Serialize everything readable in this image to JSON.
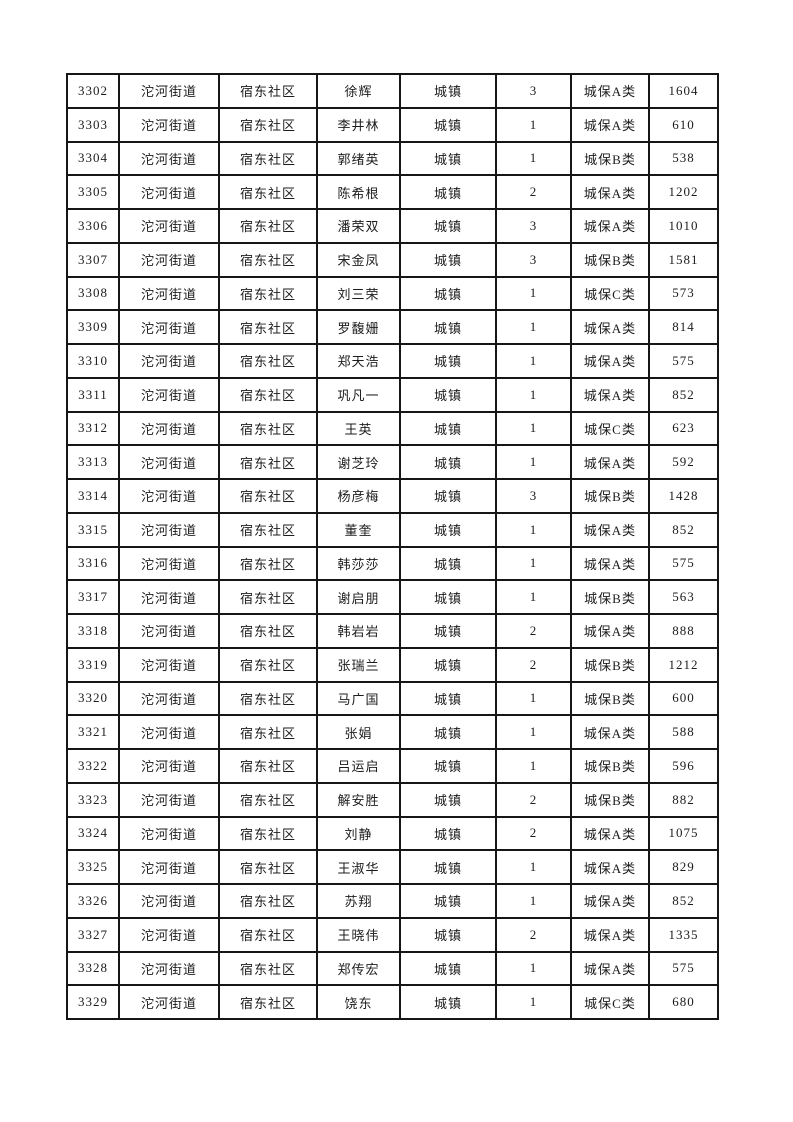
{
  "colors": {
    "page_background": "#ffffff",
    "grid_border": "#161616",
    "text": "#1c1c1c"
  },
  "table": {
    "column_names": [
      "serial",
      "street",
      "community",
      "name",
      "residence-type",
      "person-count",
      "insurance-category",
      "amount"
    ],
    "rows": [
      [
        "3302",
        "沱河街道",
        "宿东社区",
        "徐辉",
        "城镇",
        "3",
        "城保A类",
        "1604"
      ],
      [
        "3303",
        "沱河街道",
        "宿东社区",
        "李井林",
        "城镇",
        "1",
        "城保A类",
        "610"
      ],
      [
        "3304",
        "沱河街道",
        "宿东社区",
        "郭绪英",
        "城镇",
        "1",
        "城保B类",
        "538"
      ],
      [
        "3305",
        "沱河街道",
        "宿东社区",
        "陈希根",
        "城镇",
        "2",
        "城保A类",
        "1202"
      ],
      [
        "3306",
        "沱河街道",
        "宿东社区",
        "潘荣双",
        "城镇",
        "3",
        "城保A类",
        "1010"
      ],
      [
        "3307",
        "沱河街道",
        "宿东社区",
        "宋金凤",
        "城镇",
        "3",
        "城保B类",
        "1581"
      ],
      [
        "3308",
        "沱河街道",
        "宿东社区",
        "刘三荣",
        "城镇",
        "1",
        "城保C类",
        "573"
      ],
      [
        "3309",
        "沱河街道",
        "宿东社区",
        "罗馥姗",
        "城镇",
        "1",
        "城保A类",
        "814"
      ],
      [
        "3310",
        "沱河街道",
        "宿东社区",
        "郑天浩",
        "城镇",
        "1",
        "城保A类",
        "575"
      ],
      [
        "3311",
        "沱河街道",
        "宿东社区",
        "巩凡一",
        "城镇",
        "1",
        "城保A类",
        "852"
      ],
      [
        "3312",
        "沱河街道",
        "宿东社区",
        "王英",
        "城镇",
        "1",
        "城保C类",
        "623"
      ],
      [
        "3313",
        "沱河街道",
        "宿东社区",
        "谢芝玲",
        "城镇",
        "1",
        "城保A类",
        "592"
      ],
      [
        "3314",
        "沱河街道",
        "宿东社区",
        "杨彦梅",
        "城镇",
        "3",
        "城保B类",
        "1428"
      ],
      [
        "3315",
        "沱河街道",
        "宿东社区",
        "董奎",
        "城镇",
        "1",
        "城保A类",
        "852"
      ],
      [
        "3316",
        "沱河街道",
        "宿东社区",
        "韩莎莎",
        "城镇",
        "1",
        "城保A类",
        "575"
      ],
      [
        "3317",
        "沱河街道",
        "宿东社区",
        "谢启朋",
        "城镇",
        "1",
        "城保B类",
        "563"
      ],
      [
        "3318",
        "沱河街道",
        "宿东社区",
        "韩岩岩",
        "城镇",
        "2",
        "城保A类",
        "888"
      ],
      [
        "3319",
        "沱河街道",
        "宿东社区",
        "张瑞兰",
        "城镇",
        "2",
        "城保B类",
        "1212"
      ],
      [
        "3320",
        "沱河街道",
        "宿东社区",
        "马广国",
        "城镇",
        "1",
        "城保B类",
        "600"
      ],
      [
        "3321",
        "沱河街道",
        "宿东社区",
        "张娟",
        "城镇",
        "1",
        "城保A类",
        "588"
      ],
      [
        "3322",
        "沱河街道",
        "宿东社区",
        "吕运启",
        "城镇",
        "1",
        "城保B类",
        "596"
      ],
      [
        "3323",
        "沱河街道",
        "宿东社区",
        "解安胜",
        "城镇",
        "2",
        "城保B类",
        "882"
      ],
      [
        "3324",
        "沱河街道",
        "宿东社区",
        "刘静",
        "城镇",
        "2",
        "城保A类",
        "1075"
      ],
      [
        "3325",
        "沱河街道",
        "宿东社区",
        "王淑华",
        "城镇",
        "1",
        "城保A类",
        "829"
      ],
      [
        "3326",
        "沱河街道",
        "宿东社区",
        "苏翔",
        "城镇",
        "1",
        "城保A类",
        "852"
      ],
      [
        "3327",
        "沱河街道",
        "宿东社区",
        "王晓伟",
        "城镇",
        "2",
        "城保A类",
        "1335"
      ],
      [
        "3328",
        "沱河街道",
        "宿东社区",
        "郑传宏",
        "城镇",
        "1",
        "城保A类",
        "575"
      ],
      [
        "3329",
        "沱河街道",
        "宿东社区",
        "饶东",
        "城镇",
        "1",
        "城保C类",
        "680"
      ]
    ]
  }
}
